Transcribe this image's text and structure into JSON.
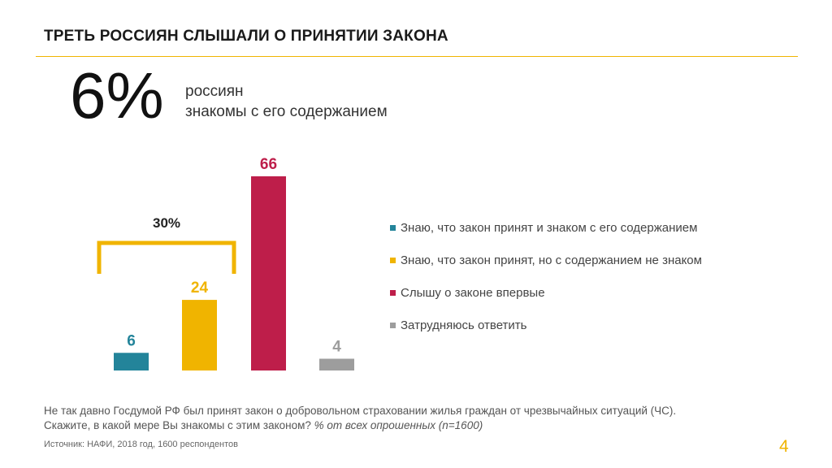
{
  "header": {
    "title": "ТРЕТЬ РОССИЯН СЛЫШАЛИ О ПРИНЯТИИ ЗАКОНА"
  },
  "highlight": {
    "value": "6%",
    "caption_line1": "россиян",
    "caption_line2": "знакомы с его содержанием"
  },
  "chart_data": {
    "type": "bar",
    "categories": [
      "Знаю, что закон принят и знаком с его содержанием",
      "Знаю, что закон принят, но с содержанием не знаком",
      "Слышу о законе впервые",
      "Затрудняюсь ответить"
    ],
    "values": [
      6,
      24,
      66,
      4
    ],
    "colors": [
      "#23849a",
      "#f0b400",
      "#be1e4a",
      "#9d9d9d"
    ],
    "bracket": {
      "label": "30%",
      "spans_categories": [
        0,
        1
      ],
      "color": "#f0b400"
    },
    "ylim": [
      0,
      66
    ],
    "legend_position": "right",
    "grid": false
  },
  "footer": {
    "question_line1": "Не так давно Госдумой РФ был принят закон о добровольном страховании жилья граждан от чрезвычайных ситуаций (ЧС).",
    "question_line2": "Скажите, в какой мере Вы знакомы с этим законом?",
    "question_note": "% от всех опрошенных (n=1600)",
    "source": "Источник: НАФИ, 2018 год, 1600 респондентов",
    "page_number": "4"
  }
}
